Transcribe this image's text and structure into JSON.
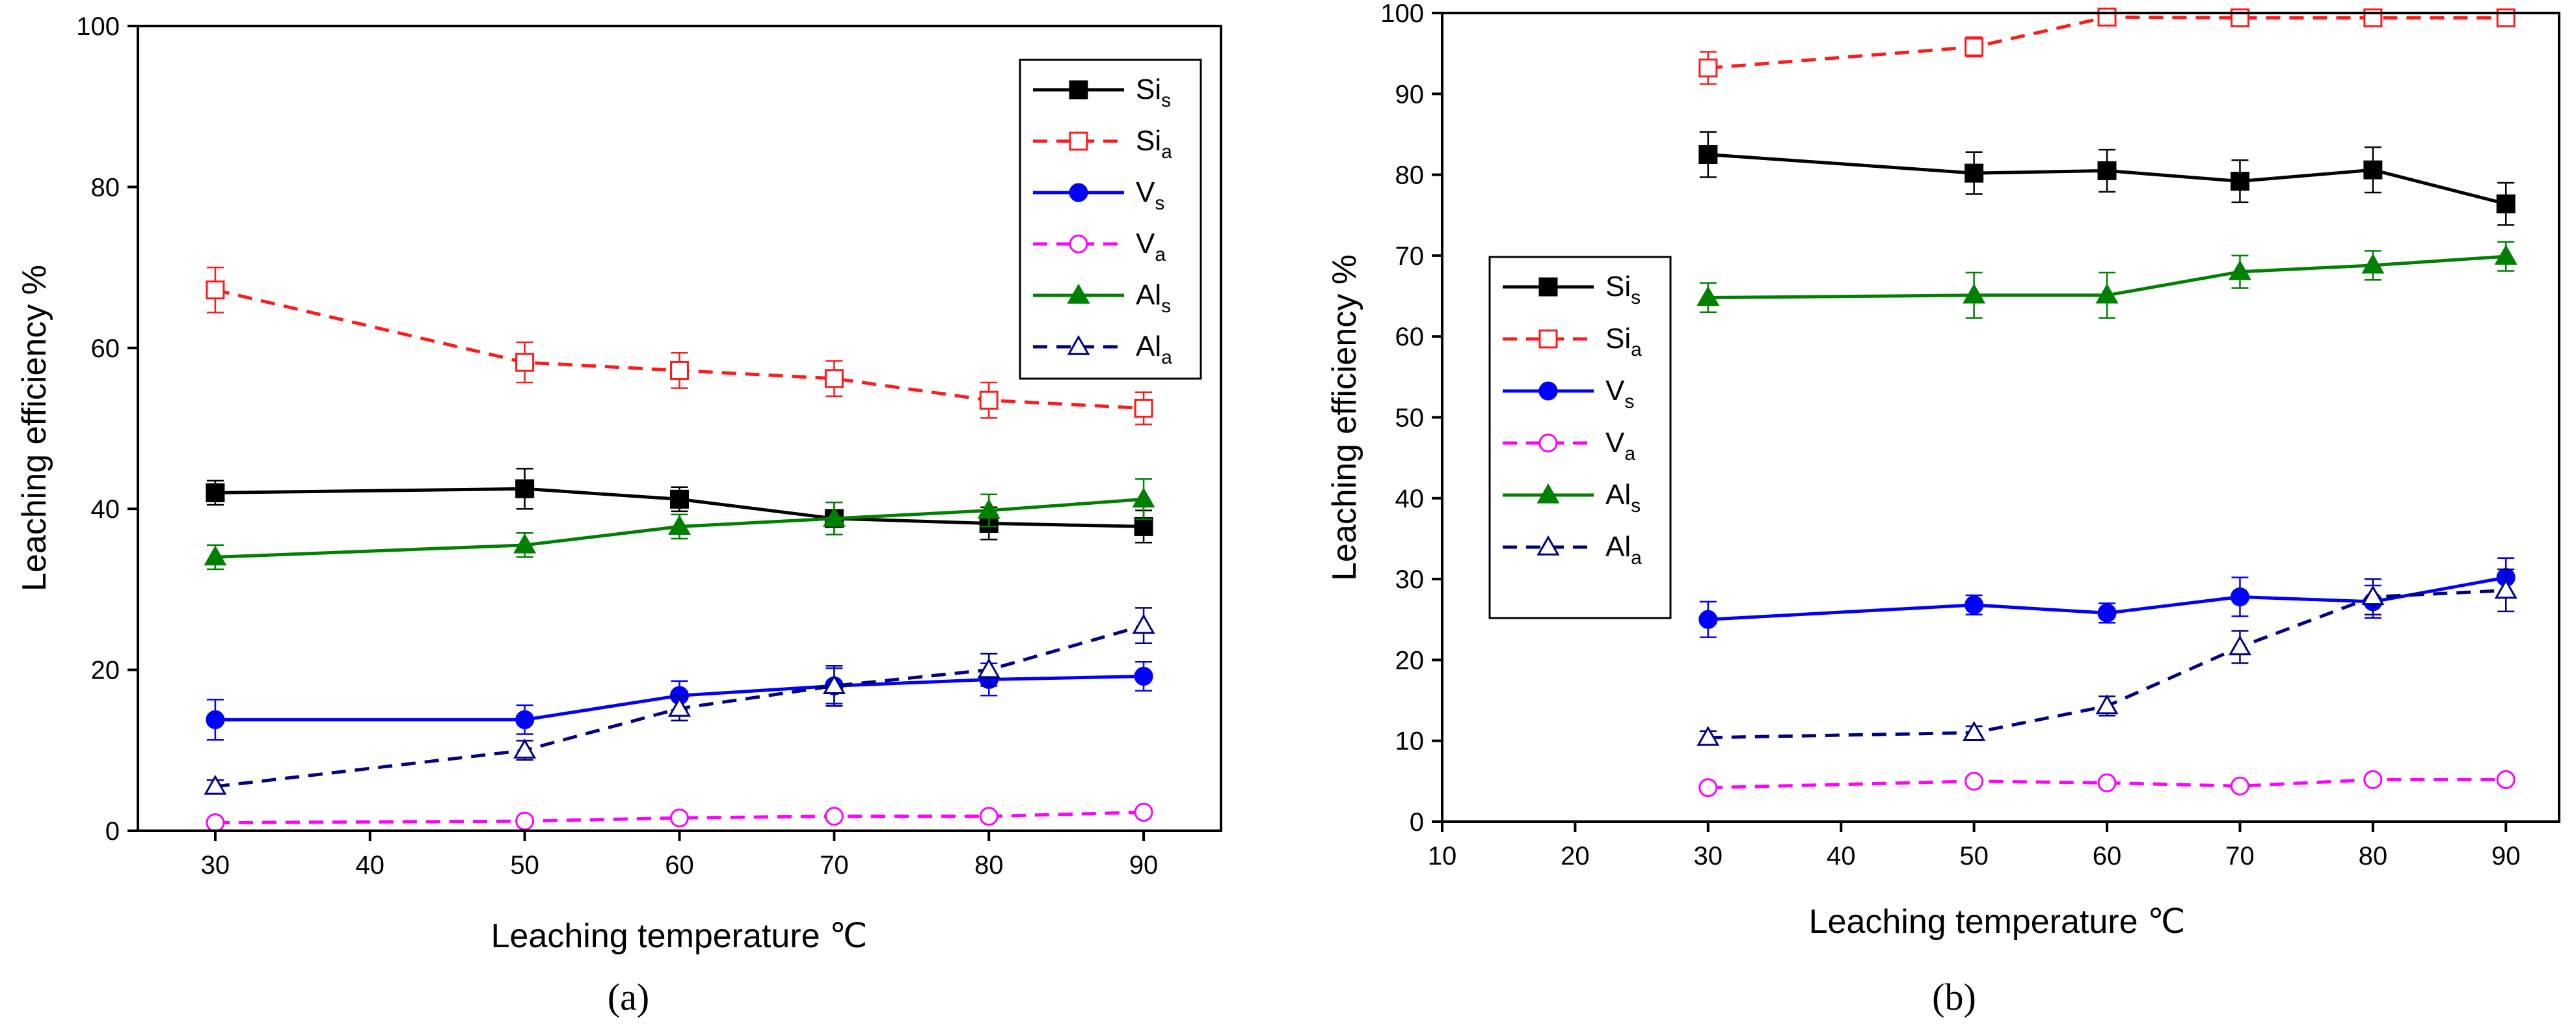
{
  "chart_data": [
    {
      "type": "line",
      "panel_label": "(a)",
      "xlabel": "Leaching temperature ℃",
      "ylabel": "Leaching efficiency %",
      "xlim": [
        25,
        95
      ],
      "ylim": [
        0,
        100
      ],
      "xticks": [
        30,
        40,
        50,
        60,
        70,
        80,
        90
      ],
      "yticks": [
        0,
        20,
        40,
        60,
        80,
        100
      ],
      "legend_position": "top-right",
      "x": [
        30,
        50,
        60,
        70,
        80,
        90
      ],
      "series": [
        {
          "name": "Si",
          "sub": "s",
          "color": "#000000",
          "marker": "square",
          "filled": true,
          "dash": false,
          "values": [
            42,
            42.5,
            41.2,
            38.8,
            38.2,
            37.8
          ],
          "errors": [
            1.5,
            2.5,
            1.5,
            2.0,
            2.0,
            2.0
          ]
        },
        {
          "name": "Si",
          "sub": "a",
          "color": "#ff1a1a",
          "marker": "square",
          "filled": false,
          "dash": true,
          "values": [
            67.2,
            58.2,
            57.2,
            56.2,
            53.5,
            52.5
          ],
          "errors": [
            2.8,
            2.5,
            2.2,
            2.2,
            2.2,
            2.0
          ]
        },
        {
          "name": "V",
          "sub": "s",
          "color": "#0000ff",
          "marker": "circle",
          "filled": true,
          "dash": false,
          "values": [
            13.8,
            13.8,
            16.8,
            18.0,
            18.8,
            19.2
          ],
          "errors": [
            2.5,
            1.8,
            1.8,
            2.2,
            2.0,
            1.8
          ]
        },
        {
          "name": "V",
          "sub": "a",
          "color": "#ff00ff",
          "marker": "circle",
          "filled": false,
          "dash": true,
          "values": [
            1.0,
            1.2,
            1.6,
            1.8,
            1.8,
            2.3
          ],
          "errors": [
            0.4,
            0.4,
            0.4,
            0.4,
            0.4,
            0.4
          ]
        },
        {
          "name": "Al",
          "sub": "s",
          "color": "#008000",
          "marker": "triangle",
          "filled": true,
          "dash": false,
          "values": [
            34.0,
            35.5,
            37.8,
            38.8,
            39.8,
            41.2
          ],
          "errors": [
            1.5,
            1.5,
            1.5,
            2.0,
            2.0,
            2.5
          ]
        },
        {
          "name": "Al",
          "sub": "a",
          "color": "#000080",
          "marker": "triangle",
          "filled": false,
          "dash": true,
          "values": [
            5.5,
            10.0,
            15.2,
            18.0,
            20.0,
            25.5
          ],
          "errors": [
            0.8,
            1.2,
            1.5,
            2.5,
            2.0,
            2.2
          ]
        }
      ]
    },
    {
      "type": "line",
      "panel_label": "(b)",
      "xlabel": "Leaching temperature ℃",
      "ylabel": "Leaching efficiency %",
      "xlim": [
        10,
        94
      ],
      "ylim": [
        0,
        100
      ],
      "xticks": [
        10,
        20,
        30,
        40,
        50,
        60,
        70,
        80,
        90
      ],
      "yticks": [
        0,
        10,
        20,
        30,
        40,
        50,
        60,
        70,
        80,
        90,
        100
      ],
      "legend_position": "middle-left",
      "x": [
        30,
        50,
        60,
        70,
        80,
        90
      ],
      "series": [
        {
          "name": "Si",
          "sub": "s",
          "color": "#000000",
          "marker": "square",
          "filled": true,
          "dash": false,
          "values": [
            82.5,
            80.2,
            80.5,
            79.2,
            80.6,
            76.4
          ],
          "errors": [
            2.8,
            2.6,
            2.6,
            2.6,
            2.8,
            2.6
          ]
        },
        {
          "name": "Si",
          "sub": "a",
          "color": "#ff1a1a",
          "marker": "square",
          "filled": false,
          "dash": true,
          "values": [
            93.2,
            95.8,
            99.5,
            99.4,
            99.4,
            99.4
          ],
          "errors": [
            2.0,
            1.2,
            0.4,
            0.3,
            0.3,
            0.3
          ]
        },
        {
          "name": "V",
          "sub": "s",
          "color": "#0000ff",
          "marker": "circle",
          "filled": true,
          "dash": false,
          "values": [
            25.0,
            26.8,
            25.8,
            27.8,
            27.2,
            30.2
          ],
          "errors": [
            2.2,
            1.2,
            1.2,
            2.4,
            2.0,
            2.4
          ]
        },
        {
          "name": "V",
          "sub": "a",
          "color": "#ff00ff",
          "marker": "circle",
          "filled": false,
          "dash": true,
          "values": [
            4.2,
            5.0,
            4.8,
            4.4,
            5.2,
            5.2
          ],
          "errors": [
            0.4,
            0.4,
            0.4,
            0.4,
            0.4,
            0.4
          ]
        },
        {
          "name": "Al",
          "sub": "s",
          "color": "#008000",
          "marker": "triangle",
          "filled": true,
          "dash": false,
          "values": [
            64.8,
            65.1,
            65.1,
            68.0,
            68.8,
            69.9
          ],
          "errors": [
            1.8,
            2.8,
            2.8,
            2.0,
            1.8,
            1.8
          ]
        },
        {
          "name": "Al",
          "sub": "a",
          "color": "#000080",
          "marker": "triangle",
          "filled": false,
          "dash": true,
          "values": [
            10.4,
            11.0,
            14.3,
            21.6,
            27.8,
            28.6
          ],
          "errors": [
            0.8,
            0.8,
            1.2,
            2.0,
            2.2,
            2.6
          ]
        }
      ]
    }
  ]
}
